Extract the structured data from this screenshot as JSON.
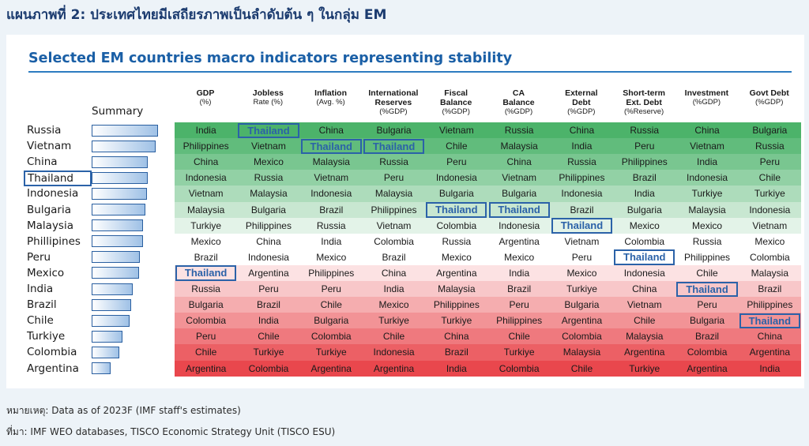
{
  "page_title": "แผนภาพที่ 2: ประเทศไทยมีเสถียรภาพเป็นลำดับต้น ๆ ในกลุ่ม EM",
  "colors": {
    "title": "#1b3b6f",
    "chart_title": "#1a5fa6",
    "highlight": "#2b62a8",
    "top_green": "#4cb36a",
    "bottom_red": "#e9474d"
  },
  "chart_data": {
    "type": "table",
    "title": "Selected EM countries macro indicators representing stability",
    "summary_label": "Summary",
    "highlight_country": "Thailand",
    "summary_ranking": [
      "Russia",
      "Vietnam",
      "China",
      "Thailand",
      "Indonesia",
      "Bulgaria",
      "Malaysia",
      "Phillipines",
      "Peru",
      "Mexico",
      "India",
      "Brazil",
      "Chile",
      "Turkiye",
      "Colombia",
      "Argentina"
    ],
    "summary_scores": [
      1.0,
      0.96,
      0.85,
      0.85,
      0.83,
      0.81,
      0.77,
      0.77,
      0.73,
      0.72,
      0.62,
      0.6,
      0.57,
      0.46,
      0.42,
      0.28
    ],
    "columns": [
      {
        "name": "GDP",
        "unit": "(%)",
        "values": [
          "India",
          "Philippines",
          "China",
          "Indonesia",
          "Vietnam",
          "Malaysia",
          "Turkiye",
          "Mexico",
          "Brazil",
          "Thailand",
          "Russia",
          "Bulgaria",
          "Colombia",
          "Peru",
          "Chile",
          "Argentina"
        ]
      },
      {
        "name": "Jobless",
        "unit": "Rate (%)",
        "values": [
          "Thailand",
          "Vietnam",
          "Mexico",
          "Russia",
          "Malaysia",
          "Bulgaria",
          "Philippines",
          "China",
          "Indonesia",
          "Argentina",
          "Peru",
          "Brazil",
          "India",
          "Chile",
          "Turkiye",
          "Colombia"
        ]
      },
      {
        "name": "Inflation",
        "unit": "(Avg. %)",
        "values": [
          "China",
          "Thailand",
          "Malaysia",
          "Vietnam",
          "Indonesia",
          "Brazil",
          "Russia",
          "India",
          "Mexico",
          "Philippines",
          "Peru",
          "Chile",
          "Bulgaria",
          "Colombia",
          "Turkiye",
          "Argentina"
        ]
      },
      {
        "name": "International",
        "unit2": "Reserves",
        "unit": "(%GDP)",
        "values": [
          "Bulgaria",
          "Thailand",
          "Russia",
          "Peru",
          "Malaysia",
          "Philippines",
          "Vietnam",
          "Colombia",
          "Brazil",
          "China",
          "India",
          "Mexico",
          "Turkiye",
          "Chile",
          "Indonesia",
          "Argentina"
        ]
      },
      {
        "name": "Fiscal",
        "unit2": "Balance",
        "unit": "(%GDP)",
        "values": [
          "Vietnam",
          "Chile",
          "Peru",
          "Indonesia",
          "Bulgaria",
          "Thailand",
          "Colombia",
          "Russia",
          "Mexico",
          "Argentina",
          "Malaysia",
          "Philippines",
          "Turkiye",
          "China",
          "Brazil",
          "India"
        ]
      },
      {
        "name": "CA",
        "unit2": "Balance",
        "unit": "(%GDP)",
        "values": [
          "Russia",
          "Malaysia",
          "China",
          "Vietnam",
          "Bulgaria",
          "Thailand",
          "Indonesia",
          "Argentina",
          "Mexico",
          "India",
          "Brazil",
          "Peru",
          "Philippines",
          "Chile",
          "Turkiye",
          "Colombia"
        ]
      },
      {
        "name": "External",
        "unit2": "Debt",
        "unit": "(%GDP)",
        "values": [
          "China",
          "India",
          "Russia",
          "Philippines",
          "Indonesia",
          "Brazil",
          "Thailand",
          "Vietnam",
          "Peru",
          "Mexico",
          "Turkiye",
          "Bulgaria",
          "Argentina",
          "Colombia",
          "Malaysia",
          "Chile"
        ]
      },
      {
        "name": "Short-term",
        "unit2": "Ext. Debt",
        "unit": "(%Reserve)",
        "values": [
          "Russia",
          "Peru",
          "Philippines",
          "Brazil",
          "India",
          "Bulgaria",
          "Mexico",
          "Colombia",
          "Thailand",
          "Indonesia",
          "China",
          "Vietnam",
          "Chile",
          "Malaysia",
          "Argentina",
          "Turkiye"
        ]
      },
      {
        "name": "Investment",
        "unit": "(%GDP)",
        "values": [
          "China",
          "Vietnam",
          "India",
          "Indonesia",
          "Turkiye",
          "Malaysia",
          "Mexico",
          "Russia",
          "Philippines",
          "Chile",
          "Thailand",
          "Peru",
          "Bulgaria",
          "Brazil",
          "Colombia",
          "Argentina"
        ]
      },
      {
        "name": "Govt Debt",
        "unit": "(%GDP)",
        "values": [
          "Bulgaria",
          "Russia",
          "Peru",
          "Chile",
          "Turkiye",
          "Indonesia",
          "Vietnam",
          "Mexico",
          "Colombia",
          "Malaysia",
          "Brazil",
          "Philippines",
          "Thailand",
          "China",
          "Argentina",
          "India"
        ]
      }
    ]
  },
  "notes": {
    "note": "หมายเหตุ: Data as of 2023F (IMF staff's estimates)",
    "source": "ที่มา: IMF WEO databases, TISCO Economic Strategy Unit (TISCO ESU)"
  }
}
